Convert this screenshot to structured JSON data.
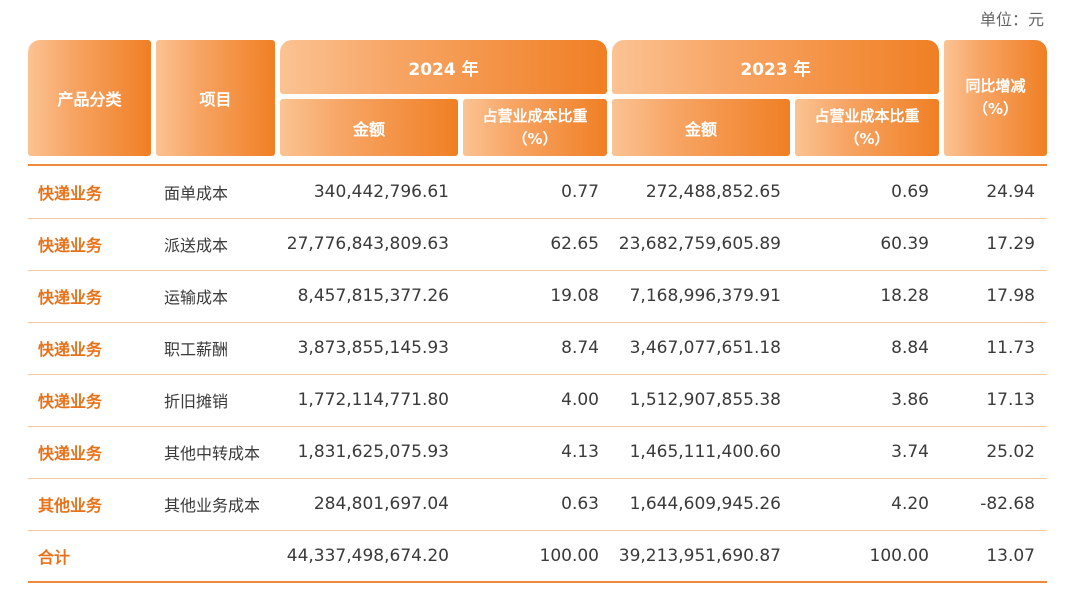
{
  "unit_label": "单位：元",
  "header": {
    "category": "产品分类",
    "item": "项目",
    "year_2024": "2024 年",
    "year_2023": "2023 年",
    "amount_2024": "金额",
    "ratio_2024_line1": "占营业成本比重",
    "ratio_2024_line2": "（%）",
    "amount_2023": "金额",
    "ratio_2023_line1": "占营业成本比重",
    "ratio_2023_line2": "（%）",
    "yoy_line1": "同比增减",
    "yoy_line2": "（%）"
  },
  "rows": [
    {
      "category": "快递业务",
      "item": "面单成本",
      "amount_2024": "340,442,796.61",
      "ratio_2024": "0.77",
      "amount_2023": "272,488,852.65",
      "ratio_2023": "0.69",
      "yoy": "24.94"
    },
    {
      "category": "快递业务",
      "item": "派送成本",
      "amount_2024": "27,776,843,809.63",
      "ratio_2024": "62.65",
      "amount_2023": "23,682,759,605.89",
      "ratio_2023": "60.39",
      "yoy": "17.29"
    },
    {
      "category": "快递业务",
      "item": "运输成本",
      "amount_2024": "8,457,815,377.26",
      "ratio_2024": "19.08",
      "amount_2023": "7,168,996,379.91",
      "ratio_2023": "18.28",
      "yoy": "17.98"
    },
    {
      "category": "快递业务",
      "item": "职工薪酬",
      "amount_2024": "3,873,855,145.93",
      "ratio_2024": "8.74",
      "amount_2023": "3,467,077,651.18",
      "ratio_2023": "8.84",
      "yoy": "11.73"
    },
    {
      "category": "快递业务",
      "item": "折旧摊销",
      "amount_2024": "1,772,114,771.80",
      "ratio_2024": "4.00",
      "amount_2023": "1,512,907,855.38",
      "ratio_2023": "3.86",
      "yoy": "17.13"
    },
    {
      "category": "快递业务",
      "item": "其他中转成本",
      "amount_2024": "1,831,625,075.93",
      "ratio_2024": "4.13",
      "amount_2023": "1,465,111,400.60",
      "ratio_2023": "3.74",
      "yoy": "25.02"
    },
    {
      "category": "其他业务",
      "item": "其他业务成本",
      "amount_2024": "284,801,697.04",
      "ratio_2024": "0.63",
      "amount_2023": "1,644,609,945.26",
      "ratio_2023": "4.20",
      "yoy": "-82.68"
    },
    {
      "category": "合计",
      "item": "",
      "amount_2024": "44,337,498,674.20",
      "ratio_2024": "100.00",
      "amount_2023": "39,213,951,690.87",
      "ratio_2023": "100.00",
      "yoy": "13.07"
    }
  ]
}
